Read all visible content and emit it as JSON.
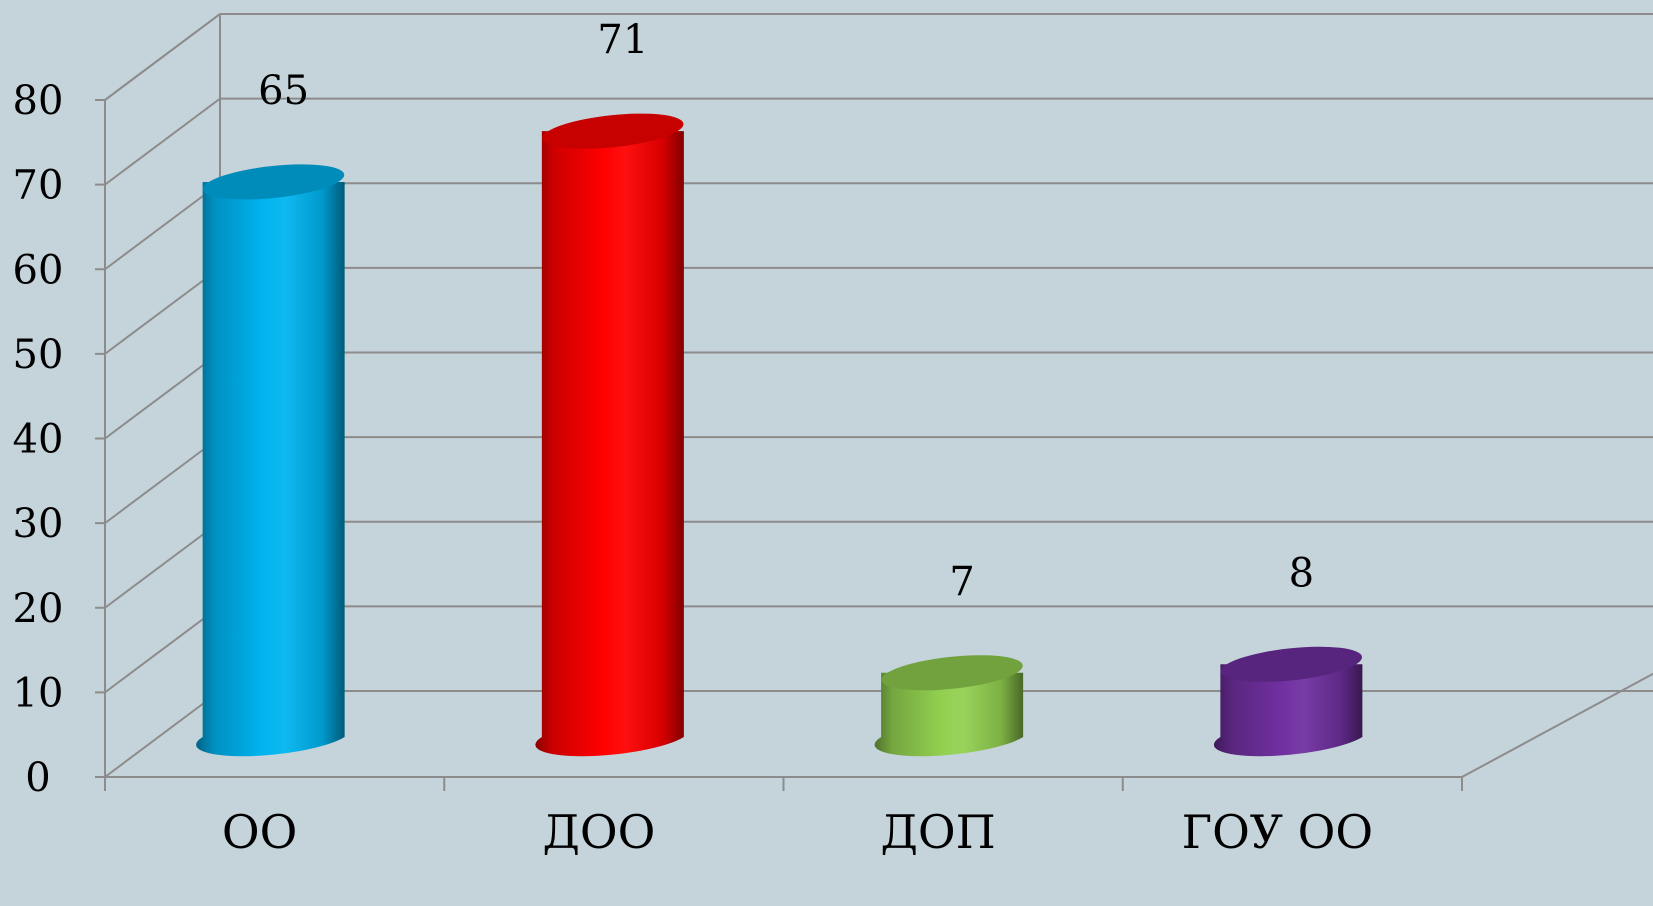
{
  "chart_data": {
    "type": "bar",
    "style": "3d-cylinder",
    "categories": [
      "ОО",
      "ДОО",
      "ДОП",
      "ГОУ ОО"
    ],
    "values": [
      65,
      71,
      7,
      8
    ],
    "data_labels": [
      "65",
      "71",
      "7",
      "8"
    ],
    "title": "",
    "xlabel": "",
    "ylabel": "",
    "ylim": [
      0,
      80
    ],
    "yticks": [
      "0",
      "10",
      "20",
      "30",
      "40",
      "50",
      "60",
      "70",
      "80"
    ],
    "grid": true,
    "legend": "none",
    "colors": {
      "background": "#c5d3da",
      "grid": "#8c8c8c",
      "bars": [
        "#00b4f0",
        "#ff0000",
        "#92d050",
        "#7030a0"
      ]
    }
  }
}
